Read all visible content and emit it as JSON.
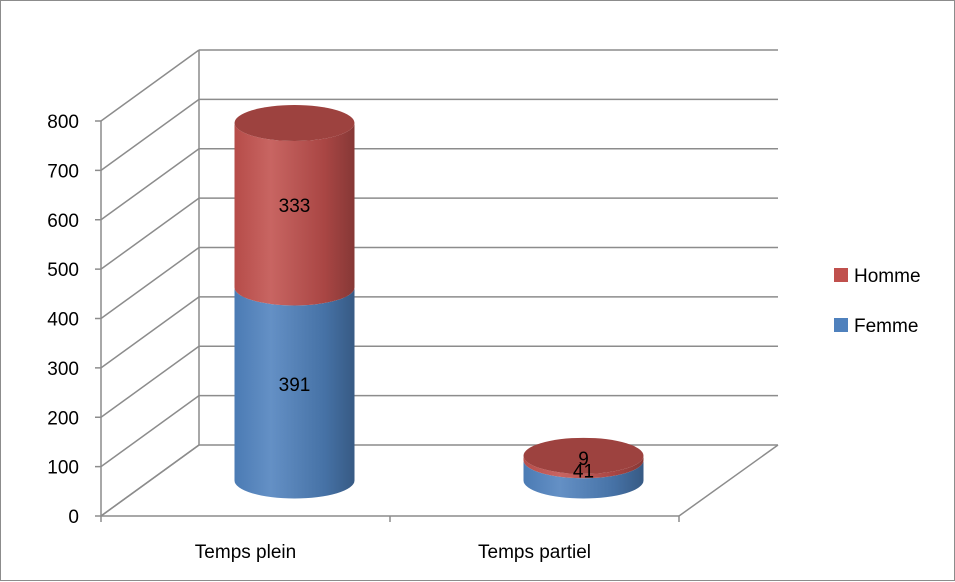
{
  "chart_data": {
    "type": "bar",
    "subtype": "stacked-3d-cylinder",
    "title": "",
    "xlabel": "",
    "ylabel": "",
    "categories": [
      "Temps plein",
      "Temps partiel"
    ],
    "series": [
      {
        "name": "Femme",
        "values": [
          391,
          41
        ],
        "color": "#4f81bd"
      },
      {
        "name": "Homme",
        "values": [
          333,
          9
        ],
        "color": "#c0504d"
      }
    ],
    "ylim": [
      0,
      800
    ],
    "yticks": [
      0,
      100,
      200,
      300,
      400,
      500,
      600,
      700,
      800
    ],
    "grid": true,
    "legend": "right",
    "data_labels": true
  }
}
